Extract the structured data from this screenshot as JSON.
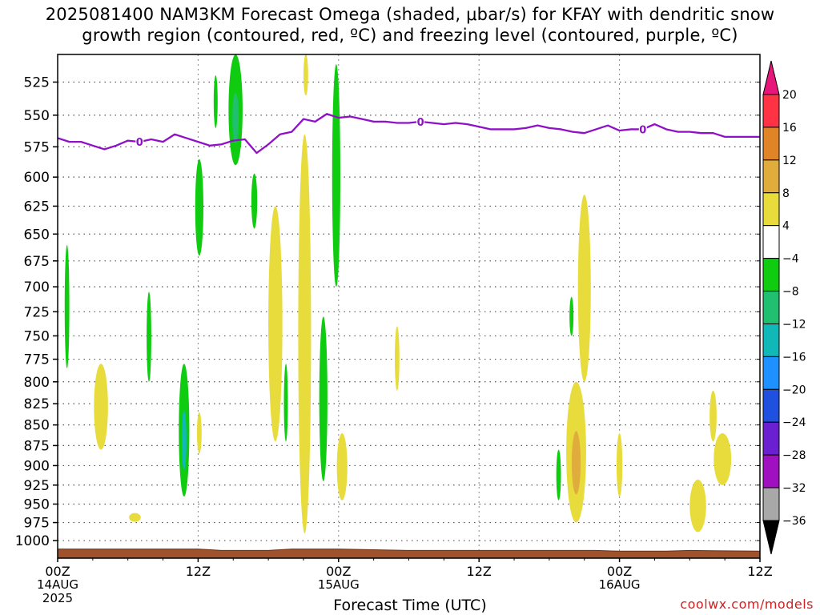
{
  "title_line1": "2025081400 NAM3KM Forecast Omega (shaded, μbar/s) for KFAY with dendritic snow",
  "title_line2": "growth region (contoured, red, ºC) and freezing level (contoured, purple, ºC)",
  "credit": "coolwx.com/models",
  "colors": {
    "green_dark": "#10cc10",
    "green_light": "#20c070",
    "cyan": "#10b8b8",
    "yellow": "#e8dc3c",
    "gold": "#e0ac3c",
    "orange": "#e08428",
    "freezing_level": "#9010c8",
    "terrain": "#a0522d"
  },
  "chart_data": {
    "type": "heatmap",
    "title": "2025081400 NAM3KM Forecast Omega (shaded, μbar/s) for KFAY with dendritic snow growth region (contoured, red, ºC) and freezing level (contoured, purple, ºC)",
    "xlabel": "Forecast Time (UTC)",
    "ylabel": "",
    "x_range_hours": [
      0,
      60
    ],
    "x_ticks": [
      {
        "hour": 0,
        "label": "00Z",
        "sub": [
          "14AUG",
          "2025"
        ]
      },
      {
        "hour": 12,
        "label": "12Z",
        "sub": []
      },
      {
        "hour": 24,
        "label": "00Z",
        "sub": [
          "15AUG"
        ]
      },
      {
        "hour": 36,
        "label": "12Z",
        "sub": []
      },
      {
        "hour": 48,
        "label": "00Z",
        "sub": [
          "16AUG"
        ]
      },
      {
        "hour": 60,
        "label": "12Z",
        "sub": []
      }
    ],
    "y_axis": "pressure_hPa_log",
    "y_range": [
      1025,
      505
    ],
    "y_ticks": [
      525,
      550,
      575,
      600,
      625,
      650,
      675,
      700,
      725,
      750,
      775,
      800,
      825,
      850,
      875,
      900,
      925,
      950,
      975,
      1000
    ],
    "grid": true,
    "colorbar": {
      "labels": [
        "20",
        "16",
        "12",
        "8",
        "4",
        "−4",
        "−8",
        "−12",
        "−16",
        "−20",
        "−24",
        "−28",
        "−32",
        "−36"
      ],
      "bins": [
        {
          "range": [
            16,
            20
          ],
          "color": "#ff3344"
        },
        {
          "range": [
            12,
            16
          ],
          "color": "#e08428"
        },
        {
          "range": [
            8,
            12
          ],
          "color": "#e0ac3c"
        },
        {
          "range": [
            4,
            8
          ],
          "color": "#e8dc3c"
        },
        {
          "range": [
            -4,
            4
          ],
          "color": "#ffffff"
        },
        {
          "range": [
            -8,
            -4
          ],
          "color": "#10cc10"
        },
        {
          "range": [
            -12,
            -8
          ],
          "color": "#20c070"
        },
        {
          "range": [
            -16,
            -12
          ],
          "color": "#10b8b8"
        },
        {
          "range": [
            -20,
            -16
          ],
          "color": "#1e90ff"
        },
        {
          "range": [
            -24,
            -20
          ],
          "color": "#2050e0"
        },
        {
          "range": [
            -28,
            -24
          ],
          "color": "#6a20d0"
        },
        {
          "range": [
            -32,
            -28
          ],
          "color": "#a010c0"
        },
        {
          "range": [
            -36,
            -32
          ],
          "color": "#a8a8a8"
        }
      ],
      "top_arrow_color": "#e6167a",
      "bottom_arrow_color": "#000000"
    },
    "freezing_level": {
      "contour_label": "0",
      "label_hours": [
        7,
        31,
        50
      ],
      "points": [
        [
          0,
          568
        ],
        [
          1,
          571
        ],
        [
          2,
          571
        ],
        [
          3,
          574
        ],
        [
          4,
          577
        ],
        [
          5,
          574
        ],
        [
          6,
          570
        ],
        [
          7,
          571
        ],
        [
          8,
          569
        ],
        [
          9,
          571
        ],
        [
          10,
          565
        ],
        [
          11,
          568
        ],
        [
          12,
          571
        ],
        [
          13,
          574
        ],
        [
          14,
          573
        ],
        [
          15,
          570
        ],
        [
          16,
          569
        ],
        [
          17,
          580
        ],
        [
          18,
          573
        ],
        [
          19,
          565
        ],
        [
          20,
          563
        ],
        [
          21,
          553
        ],
        [
          22,
          555
        ],
        [
          23,
          549
        ],
        [
          24,
          552
        ],
        [
          25,
          551
        ],
        [
          26,
          553
        ],
        [
          27,
          555
        ],
        [
          28,
          555
        ],
        [
          29,
          556
        ],
        [
          30,
          556
        ],
        [
          31,
          555
        ],
        [
          32,
          556
        ],
        [
          33,
          557
        ],
        [
          34,
          556
        ],
        [
          35,
          557
        ],
        [
          36,
          559
        ],
        [
          37,
          561
        ],
        [
          38,
          561
        ],
        [
          39,
          561
        ],
        [
          40,
          560
        ],
        [
          41,
          558
        ],
        [
          42,
          560
        ],
        [
          43,
          561
        ],
        [
          44,
          563
        ],
        [
          45,
          564
        ],
        [
          46,
          561
        ],
        [
          47,
          558
        ],
        [
          48,
          562
        ],
        [
          49,
          561
        ],
        [
          50,
          561
        ],
        [
          51,
          557
        ],
        [
          52,
          561
        ],
        [
          53,
          563
        ],
        [
          54,
          563
        ],
        [
          55,
          564
        ],
        [
          56,
          564
        ],
        [
          57,
          567
        ],
        [
          58,
          567
        ],
        [
          59,
          567
        ],
        [
          60,
          567
        ]
      ]
    },
    "omega_blobs": [
      {
        "hour": 15.2,
        "p_top": 505,
        "p_bot": 590,
        "half_width_hours": 0.6,
        "omega": -6,
        "core": -10
      },
      {
        "hour": 13.5,
        "p_top": 520,
        "p_bot": 560,
        "half_width_hours": 0.15,
        "omega": -6
      },
      {
        "hour": 12.1,
        "p_top": 585,
        "p_bot": 670,
        "half_width_hours": 0.35,
        "omega": -6
      },
      {
        "hour": 16.8,
        "p_top": 597,
        "p_bot": 645,
        "half_width_hours": 0.25,
        "omega": -6
      },
      {
        "hour": 0.8,
        "p_top": 660,
        "p_bot": 785,
        "half_width_hours": 0.2,
        "omega": -6
      },
      {
        "hour": 7.8,
        "p_top": 705,
        "p_bot": 800,
        "half_width_hours": 0.2,
        "omega": -6
      },
      {
        "hour": 10.8,
        "p_top": 780,
        "p_bot": 940,
        "half_width_hours": 0.45,
        "omega": -6,
        "core": -13
      },
      {
        "hour": 23.8,
        "p_top": 512,
        "p_bot": 700,
        "half_width_hours": 0.35,
        "omega": -6
      },
      {
        "hour": 22.7,
        "p_top": 730,
        "p_bot": 920,
        "half_width_hours": 0.35,
        "omega": -6
      },
      {
        "hour": 19.5,
        "p_top": 780,
        "p_bot": 870,
        "half_width_hours": 0.12,
        "omega": -6
      },
      {
        "hour": 42.8,
        "p_top": 880,
        "p_bot": 945,
        "half_width_hours": 0.2,
        "omega": -6
      },
      {
        "hour": 43.9,
        "p_top": 710,
        "p_bot": 750,
        "half_width_hours": 0.12,
        "omega": -6
      },
      {
        "hour": 21.2,
        "p_top": 505,
        "p_bot": 535,
        "half_width_hours": 0.2,
        "omega": 5
      },
      {
        "hour": 18.6,
        "p_top": 625,
        "p_bot": 870,
        "half_width_hours": 0.6,
        "omega": 5
      },
      {
        "hour": 21.1,
        "p_top": 565,
        "p_bot": 990,
        "half_width_hours": 0.55,
        "omega": 5
      },
      {
        "hour": 24.3,
        "p_top": 860,
        "p_bot": 945,
        "half_width_hours": 0.45,
        "omega": 5
      },
      {
        "hour": 29.0,
        "p_top": 740,
        "p_bot": 810,
        "half_width_hours": 0.2,
        "omega": 5
      },
      {
        "hour": 3.7,
        "p_top": 780,
        "p_bot": 880,
        "half_width_hours": 0.6,
        "omega": 5
      },
      {
        "hour": 6.6,
        "p_top": 962,
        "p_bot": 974,
        "half_width_hours": 0.5,
        "omega": 5
      },
      {
        "hour": 12.1,
        "p_top": 835,
        "p_bot": 885,
        "half_width_hours": 0.2,
        "omega": 5
      },
      {
        "hour": 45.0,
        "p_top": 615,
        "p_bot": 800,
        "half_width_hours": 0.55,
        "omega": 5
      },
      {
        "hour": 44.3,
        "p_top": 800,
        "p_bot": 975,
        "half_width_hours": 0.85,
        "omega": 6,
        "core": 10
      },
      {
        "hour": 48.0,
        "p_top": 860,
        "p_bot": 940,
        "half_width_hours": 0.25,
        "omega": 5
      },
      {
        "hour": 56.0,
        "p_top": 810,
        "p_bot": 870,
        "half_width_hours": 0.3,
        "omega": 5
      },
      {
        "hour": 56.8,
        "p_top": 860,
        "p_bot": 925,
        "half_width_hours": 0.75,
        "omega": 5
      },
      {
        "hour": 54.7,
        "p_top": 918,
        "p_bot": 988,
        "half_width_hours": 0.7,
        "omega": 5
      }
    ],
    "terrain": {
      "points": [
        [
          0,
          1012
        ],
        [
          4,
          1012
        ],
        [
          8,
          1012
        ],
        [
          12,
          1012
        ],
        [
          14,
          1014
        ],
        [
          18,
          1014
        ],
        [
          20,
          1012
        ],
        [
          24,
          1012
        ],
        [
          30,
          1014
        ],
        [
          40,
          1014
        ],
        [
          46,
          1014
        ],
        [
          48,
          1015
        ],
        [
          52,
          1015
        ],
        [
          54,
          1014
        ],
        [
          60,
          1015
        ]
      ],
      "base": 1025
    }
  }
}
